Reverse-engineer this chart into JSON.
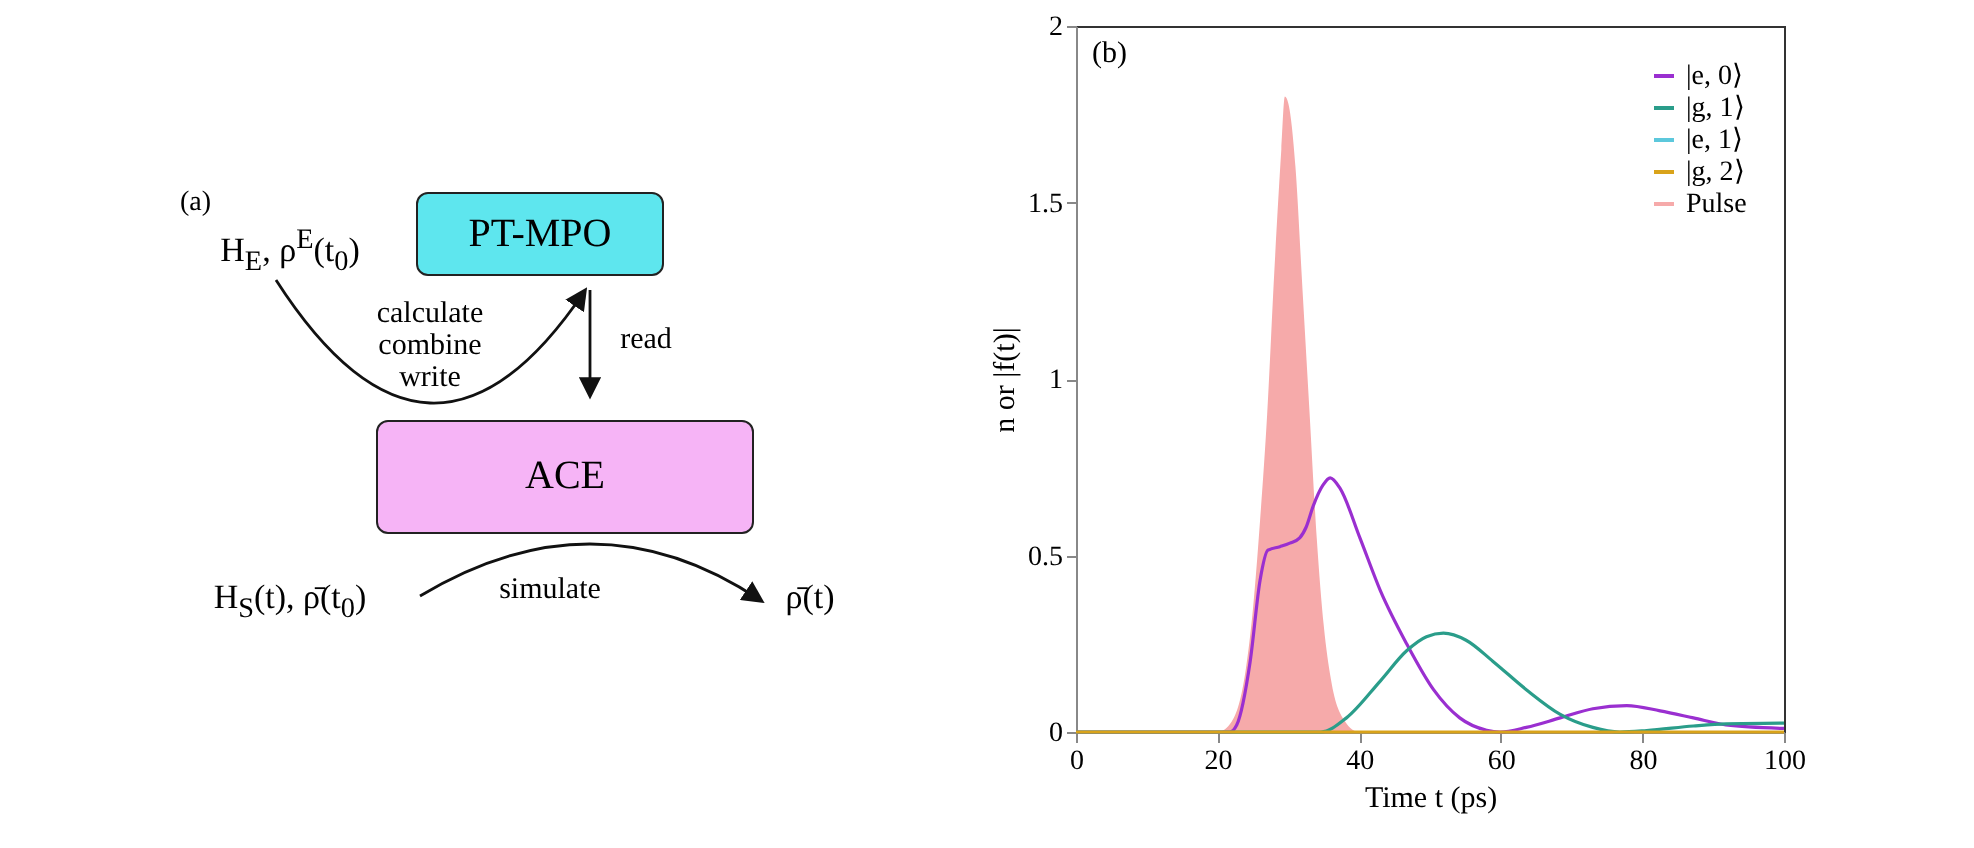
{
  "chart_data": [
    {
      "type": "other",
      "title": "(a)",
      "annotations": [
        "H$_{E}$, ρ$^{E}$(t$_{0}$)",
        "PT-MPO",
        "calculate\ncombine\nwrite",
        "read",
        "ACE",
        "H$_{S}$(t), ρ̄(t$_{0}$)",
        "simulate",
        "ρ̄(t)"
      ]
    },
    {
      "type": "line",
      "xlabel": "Time t (ps)",
      "ylabel": "n or |f(t)|",
      "annotations": [
        "(b)"
      ],
      "xlim": [
        0,
        100
      ],
      "ylim": [
        0,
        2
      ],
      "xticks": [
        0,
        20,
        40,
        60,
        80,
        100
      ],
      "yticks": [
        0,
        0.5,
        1,
        1.5,
        2
      ],
      "legend": "top right",
      "grid": false,
      "series": [
        {
          "name": "|e, 0⟩",
          "color": "#9a2fd0",
          "x": [
            0,
            21.7,
            22.7,
            24.6,
            26,
            27.1,
            28.8,
            30.2,
            31.6,
            32.5,
            33.5,
            34.9,
            35.9,
            37.3,
            40.1,
            43,
            46.7,
            50.5,
            54.2,
            58,
            59.9,
            63.6,
            68.4,
            73,
            77.8,
            82.5,
            87.2,
            91.8,
            100
          ],
          "values": [
            0,
            0,
            0.02,
            0.2,
            0.43,
            0.515,
            0.525,
            0.535,
            0.55,
            0.58,
            0.64,
            0.7,
            0.72,
            0.69,
            0.55,
            0.4,
            0.25,
            0.12,
            0.04,
            0.005,
            0,
            0.013,
            0.04,
            0.066,
            0.075,
            0.06,
            0.04,
            0.02,
            0.01
          ]
        },
        {
          "name": "|g, 1⟩",
          "color": "#2a9d8a",
          "x": [
            0,
            34.6,
            38.2,
            43,
            46.7,
            49.5,
            51.9,
            55.1,
            58.9,
            63.6,
            68.4,
            73,
            76.8,
            80.6,
            87.2,
            91.8,
            100
          ],
          "values": [
            0,
            0,
            0.04,
            0.145,
            0.23,
            0.27,
            0.28,
            0.26,
            0.2,
            0.12,
            0.05,
            0.013,
            0,
            0.004,
            0.017,
            0.023,
            0.025
          ]
        },
        {
          "name": "|e, 1⟩",
          "color": "#5cc8dc"
        },
        {
          "name": "|g, 2⟩",
          "color": "#d9a31a",
          "x": [
            0,
            25,
            50,
            75,
            100
          ],
          "values": [
            0,
            0,
            0,
            0,
            0
          ]
        },
        {
          "name": "Pulse",
          "type": "area",
          "color": "#f6aaaa",
          "x": [
            0,
            20,
            22,
            24,
            25,
            26,
            27,
            28,
            29,
            29.5,
            30,
            31,
            32,
            33,
            34,
            35,
            36,
            38,
            40,
            100
          ],
          "values": [
            0,
            0,
            0.03,
            0.18,
            0.35,
            0.6,
            0.9,
            1.3,
            1.65,
            1.8,
            1.78,
            1.6,
            1.25,
            0.9,
            0.55,
            0.3,
            0.15,
            0.03,
            0,
            0
          ]
        }
      ]
    }
  ]
}
